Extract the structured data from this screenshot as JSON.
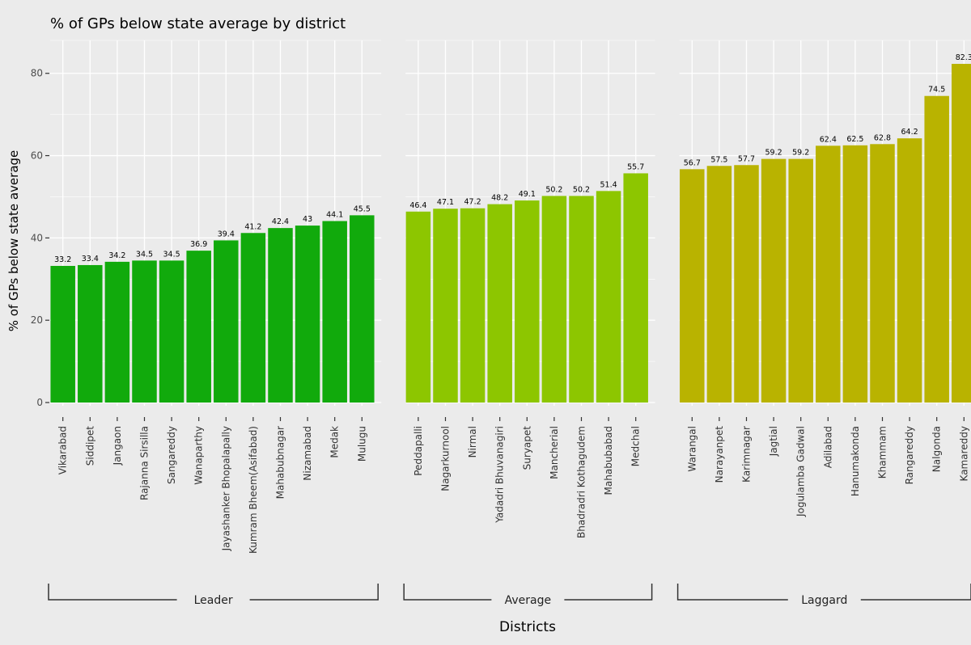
{
  "chart_data": {
    "type": "bar",
    "title": "% of GPs below state average by district",
    "xlabel": "Districts",
    "ylabel": "% of GPs below state average",
    "ylim": [
      0,
      88
    ],
    "yticks": [
      0,
      20,
      40,
      60,
      80
    ],
    "grid": true,
    "groups": [
      {
        "name": "Leader",
        "color": "#11aa0c",
        "categories": [
          "Vikarabad",
          "Siddipet",
          "Jangaon",
          "Rajanna Sirsilla",
          "Sangareddy",
          "Wanaparthy",
          "Jayashanker Bhopalapally",
          "Kumram Bheem(Asifabad)",
          "Mahabubnagar",
          "Nizamabad",
          "Medak",
          "Mulugu"
        ],
        "values": [
          33.2,
          33.4,
          34.2,
          34.5,
          34.5,
          36.9,
          39.4,
          41.2,
          42.4,
          43,
          44.1,
          45.5
        ],
        "labels": [
          "33.2",
          "33.4",
          "34.2",
          "34.5",
          "34.5",
          "36.9",
          "39.4",
          "41.2",
          "42.4",
          "43",
          "44.1",
          "45.5"
        ]
      },
      {
        "name": "Average",
        "color": "#8dc600",
        "categories": [
          "Peddapalli",
          "Nagarkurnool",
          "Nirmal",
          "Yadadri Bhuvanagiri",
          "Suryapet",
          "Mancherial",
          "Bhadradri Kothagudem",
          "Mahabubabad",
          "Medchal"
        ],
        "values": [
          46.4,
          47.1,
          47.2,
          48.2,
          49.1,
          50.2,
          50.2,
          51.4,
          55.7
        ],
        "labels": [
          "46.4",
          "47.1",
          "47.2",
          "48.2",
          "49.1",
          "50.2",
          "50.2",
          "51.4",
          "55.7"
        ]
      },
      {
        "name": "Laggard",
        "color": "#b9b300",
        "categories": [
          "Warangal",
          "Narayanpet",
          "Karimnagar",
          "Jagtial",
          "Jogulamba Gadwal",
          "Adilabad",
          "Hanumakonda",
          "Khammam",
          "Rangareddy",
          "Nalgonda",
          "Kamareddy"
        ],
        "values": [
          56.7,
          57.5,
          57.7,
          59.2,
          59.2,
          62.4,
          62.5,
          62.8,
          64.2,
          74.5,
          82.3
        ],
        "labels": [
          "56.7",
          "57.5",
          "57.7",
          "59.2",
          "59.2",
          "62.4",
          "62.5",
          "62.8",
          "64.2",
          "74.5",
          "82.3"
        ]
      }
    ]
  }
}
